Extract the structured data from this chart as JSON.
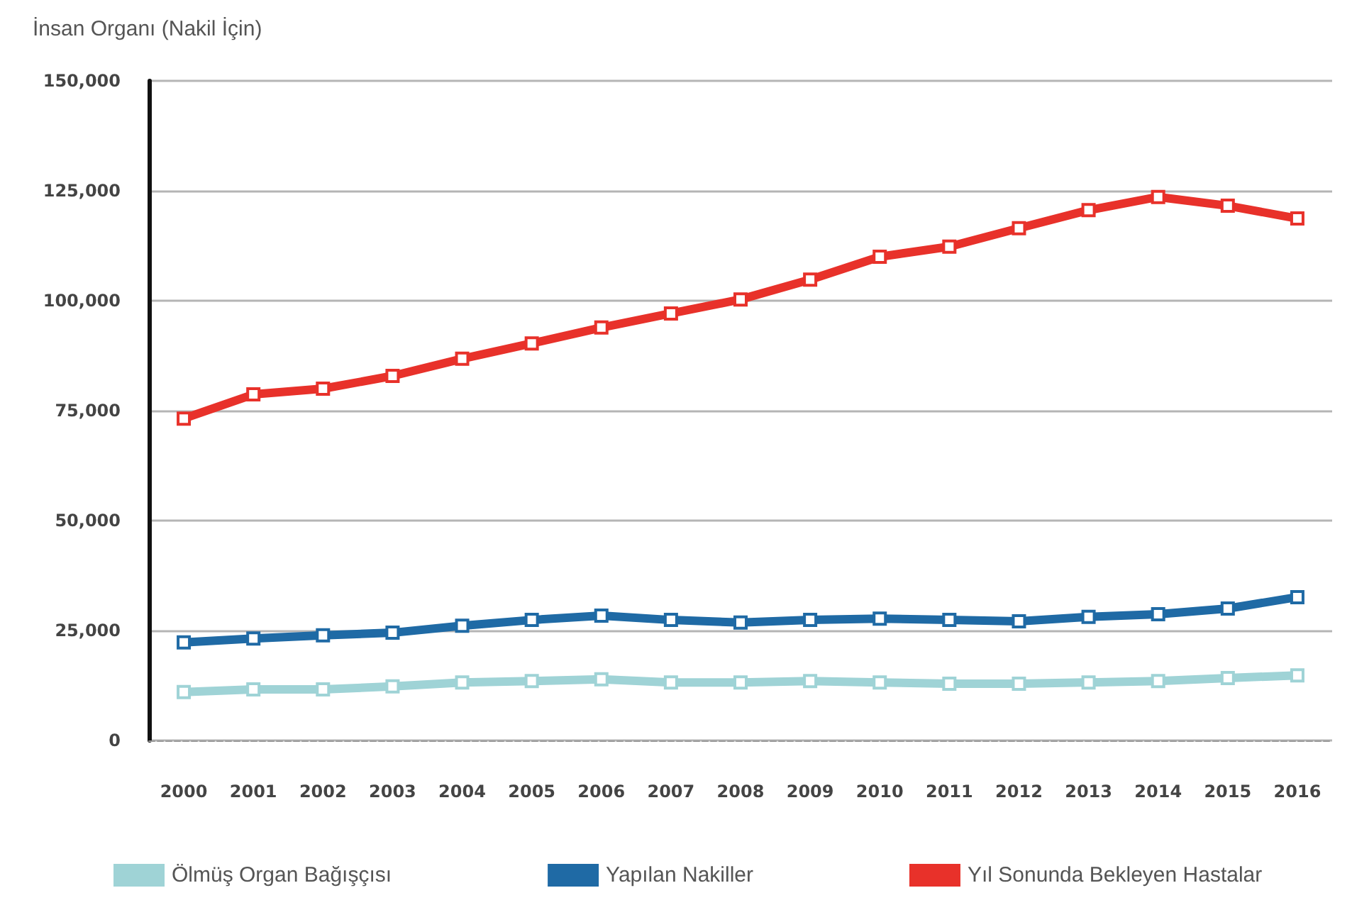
{
  "chart_data": {
    "type": "line",
    "title": "İnsan Organı (Nakil İçin)",
    "categories": [
      "2000",
      "2001",
      "2002",
      "2003",
      "2004",
      "2005",
      "2006",
      "2007",
      "2008",
      "2009",
      "2010",
      "2011",
      "2012",
      "2013",
      "2014",
      "2015",
      "2016"
    ],
    "series": [
      {
        "name": "Ölmüş Organ Bağışçısı",
        "color": "#9fd3d6",
        "values": [
          11000,
          11600,
          11600,
          12300,
          13200,
          13500,
          13900,
          13200,
          13200,
          13500,
          13200,
          12900,
          12900,
          13200,
          13500,
          14200,
          14800
        ]
      },
      {
        "name": "Yapılan Nakiller",
        "color": "#1f6aa5",
        "values": [
          22300,
          23200,
          23900,
          24500,
          26100,
          27400,
          28400,
          27400,
          26800,
          27400,
          27700,
          27400,
          27100,
          28100,
          28700,
          30000,
          32600
        ]
      },
      {
        "name": "Yıl Sonunda Bekleyen Hastalar",
        "color": "#e8312a",
        "values": [
          73200,
          78700,
          80000,
          82900,
          86800,
          90300,
          93900,
          97100,
          100300,
          104800,
          110000,
          112300,
          116500,
          120600,
          123600,
          121600,
          118700
        ]
      }
    ],
    "ylim": [
      0,
      150000
    ],
    "yticks": [
      {
        "value": 0,
        "label": "0"
      },
      {
        "value": 25000,
        "label": "25,000"
      },
      {
        "value": 50000,
        "label": "50,000"
      },
      {
        "value": 75000,
        "label": "75,000"
      },
      {
        "value": 100000,
        "label": "100,000"
      },
      {
        "value": 125000,
        "label": "125,000"
      },
      {
        "value": 150000,
        "label": "150,000"
      }
    ],
    "grid": "y",
    "legend": "bottom",
    "marker": "square",
    "line_style": "solid"
  }
}
